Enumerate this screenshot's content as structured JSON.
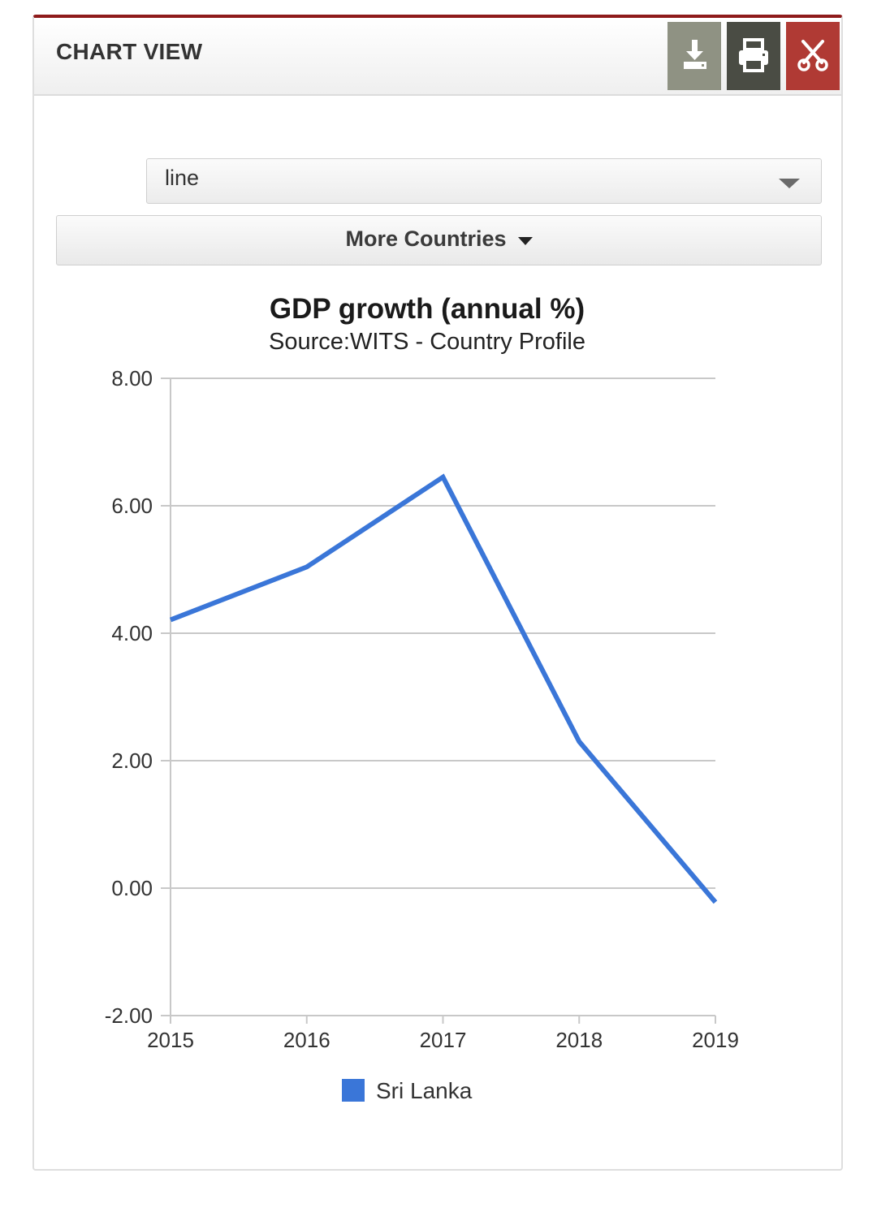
{
  "panel": {
    "title": "CHART VIEW",
    "toolbar": {
      "download_icon": "download-icon",
      "print_icon": "print-icon",
      "close_icon": "scissors-icon"
    }
  },
  "controls": {
    "chart_type_value": "line",
    "more_countries_label": "More Countries"
  },
  "colors": {
    "accent_border": "#8e1b1b",
    "download_button": "#8f9283",
    "print_button": "#4a4c44",
    "close_button": "#b03a34",
    "series": "#3a76d8"
  },
  "chart_data": {
    "type": "line",
    "title": "GDP growth (annual %)",
    "subtitle": "Source:WITS - Country Profile",
    "x": [
      "2015",
      "2016",
      "2017",
      "2018",
      "2019"
    ],
    "series": [
      {
        "name": "Sri Lanka",
        "values": [
          4.21,
          5.04,
          6.45,
          2.3,
          -0.22
        ],
        "color": "#3a76d8"
      }
    ],
    "ylim": [
      -2,
      8
    ],
    "yticks": [
      "8.00",
      "6.00",
      "4.00",
      "2.00",
      "0.00",
      "-2.00"
    ],
    "ytick_values": [
      8,
      6,
      4,
      2,
      0,
      -2
    ],
    "grid": true,
    "legend": "bottom-center"
  }
}
